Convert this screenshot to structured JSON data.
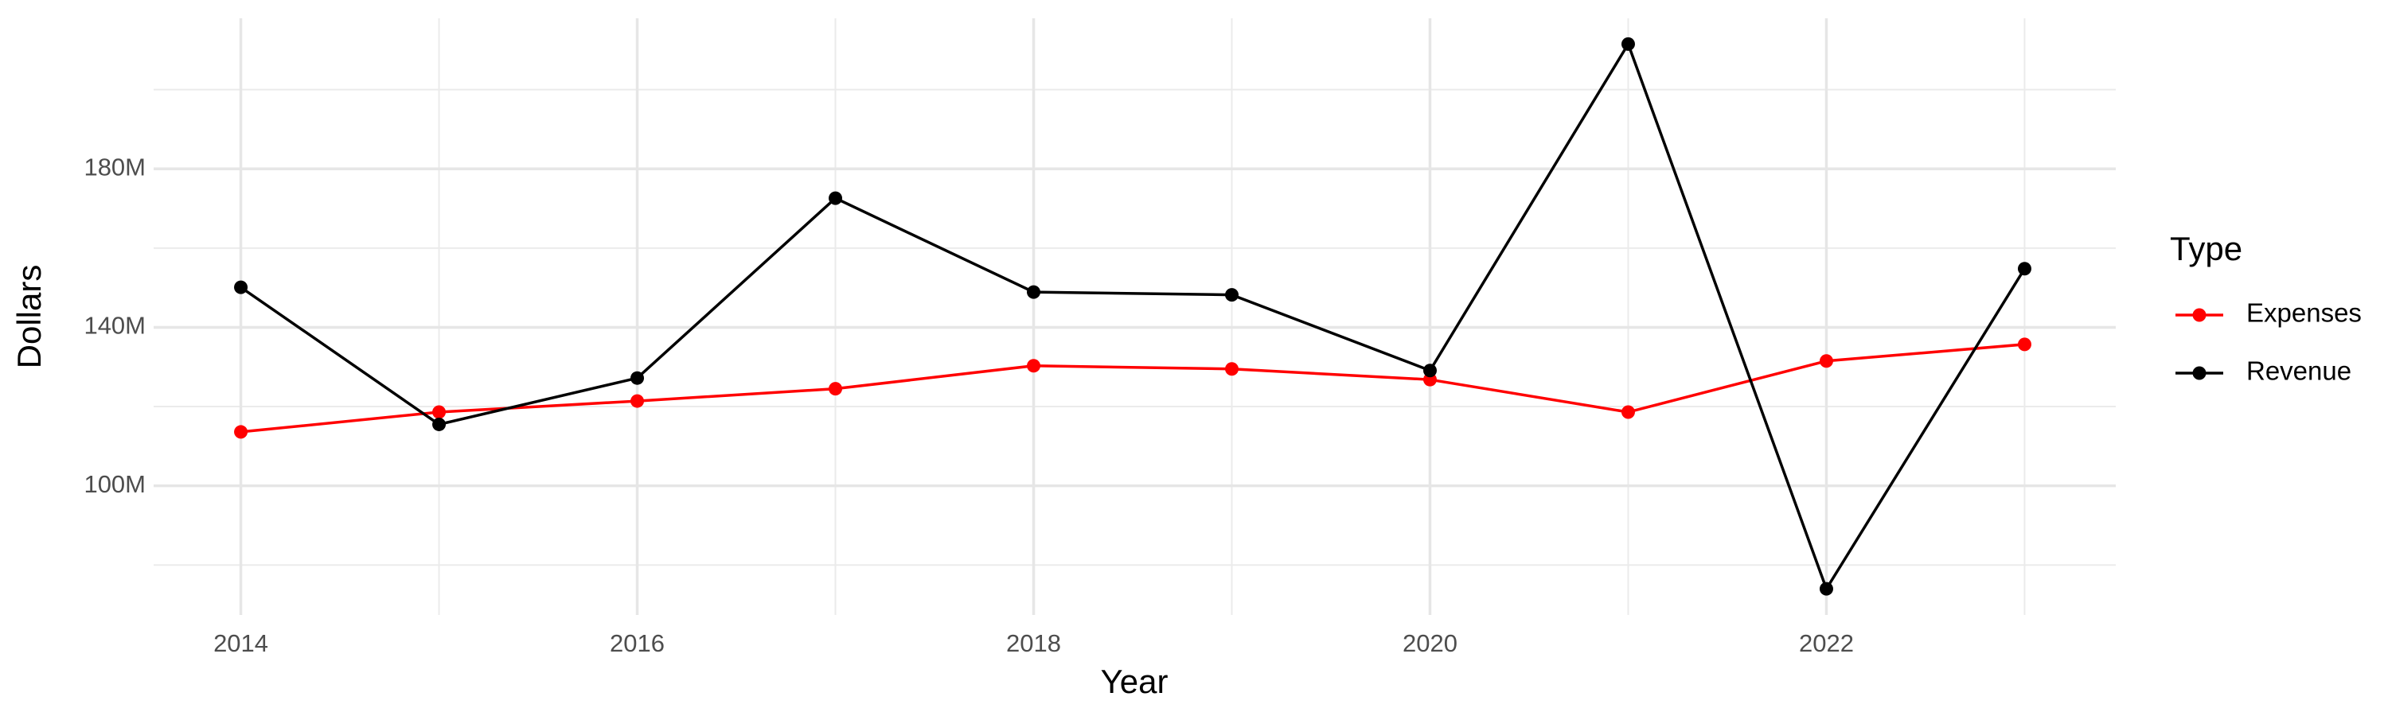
{
  "chart_data": {
    "type": "line",
    "x_label": "Year",
    "y_label": "Dollars",
    "legend_title": "Type",
    "x": [
      2014,
      2015,
      2016,
      2017,
      2018,
      2019,
      2020,
      2021,
      2022,
      2023
    ],
    "series": [
      {
        "name": "Expenses",
        "color": "#ff0000",
        "values": [
          113600000,
          118600000,
          121400000,
          124500000,
          130300000,
          129500000,
          126800000,
          118600000,
          131500000,
          135700000
        ]
      },
      {
        "name": "Revenue",
        "color": "#000000",
        "values": [
          150100000,
          115500000,
          127200000,
          172600000,
          148900000,
          148200000,
          129100000,
          211500000,
          74000000,
          154800000
        ]
      }
    ],
    "xlim": [
      2013.56,
      2023.46
    ],
    "xticks": [
      2014,
      2016,
      2018,
      2020,
      2022
    ],
    "ylim": [
      67400000,
      218000000
    ],
    "yticks": [
      {
        "value": 100000000,
        "label": "100M"
      },
      {
        "value": 140000000,
        "label": "140M"
      },
      {
        "value": 180000000,
        "label": "180M"
      }
    ],
    "grid": true,
    "legend_position": "right"
  }
}
